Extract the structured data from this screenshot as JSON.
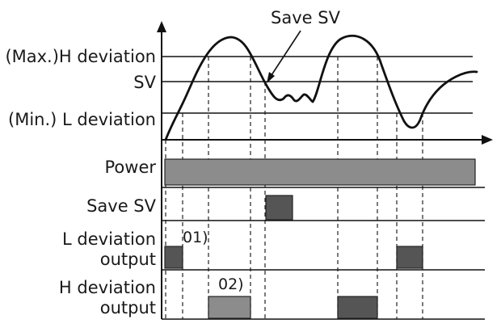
{
  "labels": {
    "h_deviation": "(Max.)H deviation",
    "sv": "SV",
    "l_deviation": "(Min.) L deviation",
    "save_sv_callout": "Save SV",
    "power": "Power",
    "save_sv": "Save SV",
    "l_dev_line1": "L deviation",
    "l_dev_line2": "output",
    "h_dev_line1": "H deviation",
    "h_dev_line2": "output",
    "marker_01": "01)",
    "marker_02": "02)"
  },
  "colors": {
    "power_bar": "#8c8c8c",
    "save_sv_bar": "#555555",
    "l_dev_bar": "#555555",
    "h_dev_bar_first": "#8c8c8c",
    "h_dev_bar_second": "#555555",
    "line": "#111111"
  }
}
